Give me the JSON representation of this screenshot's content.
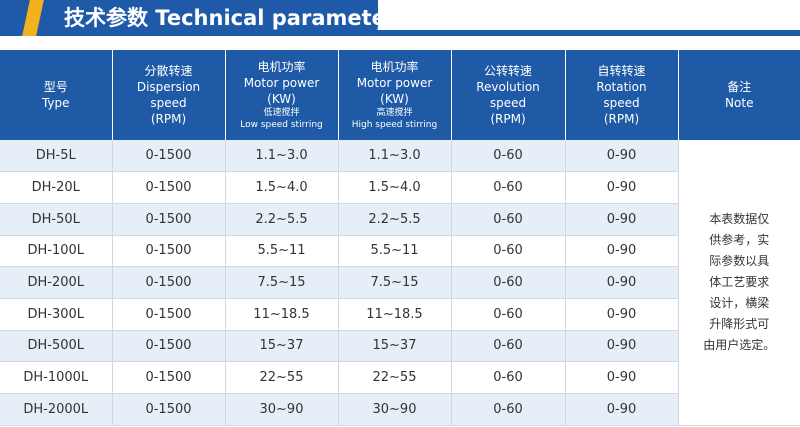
{
  "header": {
    "title": "技术参数 Technical parameters",
    "colors": {
      "primary": "#1e5aa8",
      "accent": "#f2b21d"
    }
  },
  "table": {
    "columns": [
      {
        "lines": [
          "型号",
          "Type"
        ],
        "small": []
      },
      {
        "lines": [
          "分散转速",
          "Dispersion",
          "speed",
          "(RPM)"
        ],
        "small": []
      },
      {
        "lines": [
          "电机功率",
          "Motor power",
          "(KW)"
        ],
        "small": [
          "低速搅拌",
          "Low speed stirring"
        ]
      },
      {
        "lines": [
          "电机功率",
          "Motor power",
          "(KW)"
        ],
        "small": [
          "高速搅拌",
          "High speed stirring"
        ]
      },
      {
        "lines": [
          "公转转速",
          "Revolution",
          "speed",
          "(RPM)"
        ],
        "small": []
      },
      {
        "lines": [
          "自转转速",
          "Rotation",
          "speed",
          "(RPM)"
        ],
        "small": []
      },
      {
        "lines": [
          "备注",
          "Note"
        ],
        "small": []
      }
    ],
    "rows": [
      [
        "DH-5L",
        "0-1500",
        "1.1~3.0",
        "1.1~3.0",
        "0-60",
        "0-90"
      ],
      [
        "DH-20L",
        "0-1500",
        "1.5~4.0",
        "1.5~4.0",
        "0-60",
        "0-90"
      ],
      [
        "DH-50L",
        "0-1500",
        "2.2~5.5",
        "2.2~5.5",
        "0-60",
        "0-90"
      ],
      [
        "DH-100L",
        "0-1500",
        "5.5~11",
        "5.5~11",
        "0-60",
        "0-90"
      ],
      [
        "DH-200L",
        "0-1500",
        "7.5~15",
        "7.5~15",
        "0-60",
        "0-90"
      ],
      [
        "DH-300L",
        "0-1500",
        "11~18.5",
        "11~18.5",
        "0-60",
        "0-90"
      ],
      [
        "DH-500L",
        "0-1500",
        "15~37",
        "15~37",
        "0-60",
        "0-90"
      ],
      [
        "DH-1000L",
        "0-1500",
        "22~55",
        "22~55",
        "0-60",
        "0-90"
      ],
      [
        "DH-2000L",
        "0-1500",
        "30~90",
        "30~90",
        "0-60",
        "0-90"
      ]
    ],
    "note_lines": [
      "本表数据仅",
      "供参考，实",
      "际参数以具",
      "体工艺要求",
      "设计，横梁",
      "升降形式可",
      "由用户选定。"
    ]
  }
}
